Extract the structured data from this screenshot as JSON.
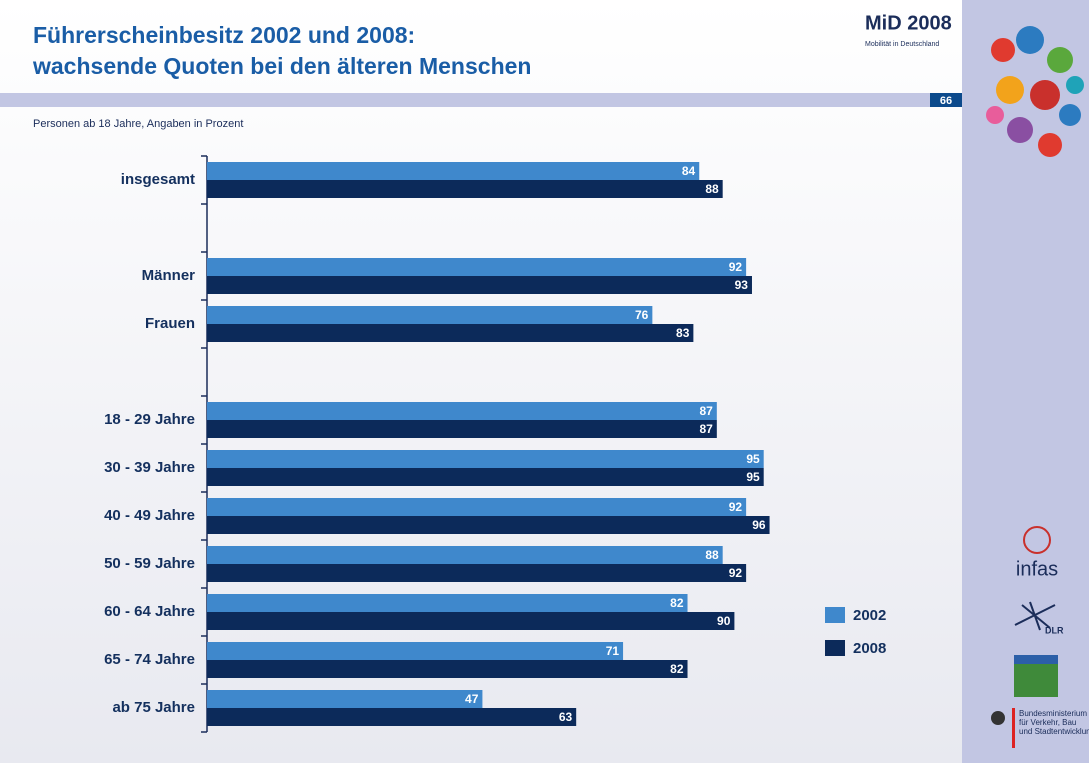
{
  "header": {
    "title": [
      "Führerscheinbesitz 2002 und 2008:",
      "wachsende Quoten bei den älteren Menschen"
    ],
    "page_number": 66,
    "logo": "MiD 2008",
    "logo_subtitle": "Mobilität in Deutschland"
  },
  "sidebar": {
    "infas": "infas",
    "dlr": "DLR",
    "ministry": [
      "Bundesministerium",
      "für Verkehr, Bau",
      "und Stadtentwicklung"
    ]
  },
  "chart_data": {
    "type": "bar",
    "orientation": "horizontal",
    "subtitle": "Personen ab 18 Jahre, Angaben in Prozent",
    "categories": [
      "insgesamt",
      null,
      "Männer",
      "Frauen",
      null,
      "18 - 29 Jahre",
      "30 - 39 Jahre",
      "40 - 49 Jahre",
      "50 - 59 Jahre",
      "60 - 64 Jahre",
      "65 - 74 Jahre",
      "ab 75 Jahre"
    ],
    "series": [
      {
        "name": "2002",
        "color": "#3f88cc",
        "values": [
          84,
          null,
          92,
          76,
          null,
          87,
          95,
          92,
          88,
          82,
          71,
          47
        ]
      },
      {
        "name": "2008",
        "color": "#0c2a5a",
        "values": [
          88,
          null,
          93,
          83,
          null,
          87,
          95,
          96,
          92,
          90,
          82,
          63
        ]
      }
    ],
    "xlim": [
      0,
      100
    ]
  }
}
